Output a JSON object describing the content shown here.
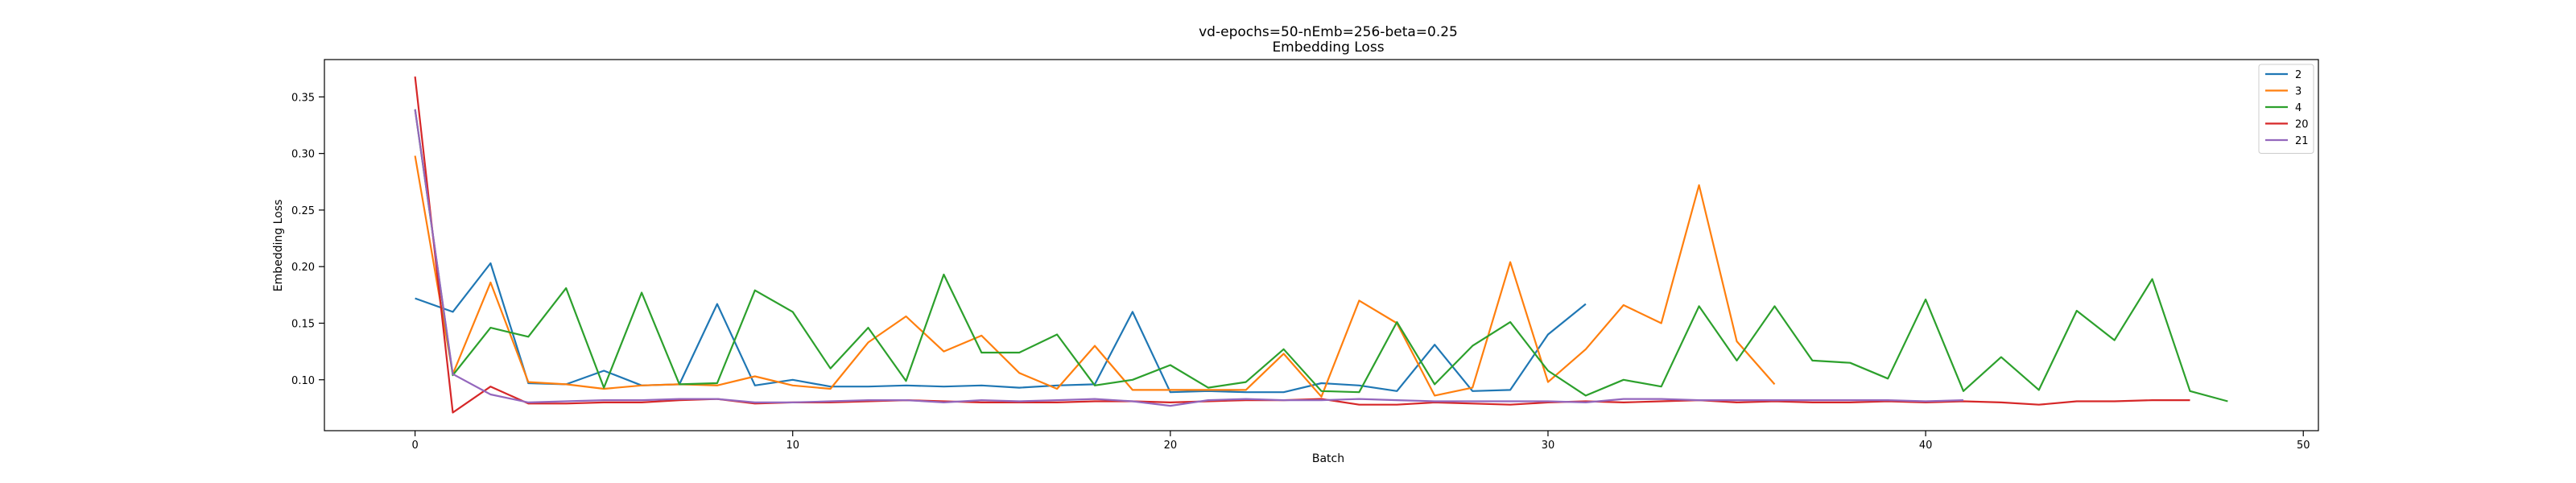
{
  "chart_data": {
    "type": "line",
    "title": "vd-epochs=50-nEmb=256-beta=0.25",
    "subtitle": "Embedding Loss",
    "xlabel": "Batch",
    "ylabel": "Embedding Loss",
    "xlim": [
      -2.4,
      50.4
    ],
    "ylim": [
      0.055,
      0.383
    ],
    "xticks": [
      0,
      10,
      20,
      30,
      40,
      50
    ],
    "yticks": [
      0.1,
      0.15,
      0.2,
      0.25,
      0.3,
      0.35
    ],
    "ytick_labels": [
      "0.10",
      "0.15",
      "0.20",
      "0.25",
      "0.30",
      "0.35"
    ],
    "grid": false,
    "legend_position": "top-right",
    "series": [
      {
        "name": "2",
        "color": "#1f77b4",
        "x": [
          0,
          1,
          2,
          3,
          4,
          5,
          6,
          7,
          8,
          9,
          10,
          11,
          12,
          13,
          14,
          15,
          16,
          17,
          18,
          19,
          20,
          21,
          22,
          23,
          24,
          25,
          26,
          27,
          28,
          29,
          30,
          31
        ],
        "values": [
          0.172,
          0.16,
          0.203,
          0.097,
          0.096,
          0.108,
          0.095,
          0.096,
          0.167,
          0.095,
          0.1,
          0.094,
          0.094,
          0.095,
          0.094,
          0.095,
          0.093,
          0.095,
          0.096,
          0.16,
          0.089,
          0.09,
          0.089,
          0.089,
          0.097,
          0.095,
          0.09,
          0.131,
          0.09,
          0.091,
          0.14,
          0.167
        ]
      },
      {
        "name": "3",
        "color": "#ff7f0e",
        "x": [
          0,
          1,
          2,
          3,
          4,
          5,
          6,
          7,
          8,
          9,
          10,
          11,
          12,
          13,
          14,
          15,
          16,
          17,
          18,
          19,
          20,
          21,
          22,
          23,
          24,
          25,
          26,
          27,
          28,
          29,
          30,
          31,
          32,
          33,
          34,
          35,
          36
        ],
        "values": [
          0.298,
          0.105,
          0.186,
          0.098,
          0.096,
          0.092,
          0.095,
          0.096,
          0.095,
          0.103,
          0.095,
          0.092,
          0.133,
          0.156,
          0.125,
          0.139,
          0.106,
          0.092,
          0.13,
          0.091,
          0.091,
          0.091,
          0.091,
          0.123,
          0.085,
          0.17,
          0.15,
          0.086,
          0.093,
          0.204,
          0.098,
          0.127,
          0.166,
          0.15,
          0.272,
          0.134,
          0.096
        ]
      },
      {
        "name": "4",
        "color": "#2ca02c",
        "x": [
          0,
          1,
          2,
          3,
          4,
          5,
          6,
          7,
          8,
          9,
          10,
          11,
          12,
          13,
          14,
          15,
          16,
          17,
          18,
          19,
          20,
          21,
          22,
          23,
          24,
          25,
          26,
          27,
          28,
          29,
          30,
          31,
          32,
          33,
          34,
          35,
          36,
          37,
          38,
          39,
          40,
          41,
          42,
          43,
          44,
          45,
          46,
          47,
          48
        ],
        "values": [
          0.339,
          0.104,
          0.146,
          0.138,
          0.181,
          0.093,
          0.177,
          0.096,
          0.097,
          0.179,
          0.16,
          0.11,
          0.146,
          0.099,
          0.193,
          0.124,
          0.124,
          0.14,
          0.095,
          0.1,
          0.113,
          0.093,
          0.098,
          0.127,
          0.09,
          0.089,
          0.151,
          0.096,
          0.13,
          0.151,
          0.108,
          0.086,
          0.1,
          0.094,
          0.165,
          0.117,
          0.165,
          0.117,
          0.115,
          0.101,
          0.171,
          0.09,
          0.12,
          0.091,
          0.161,
          0.135,
          0.189,
          0.09,
          0.081
        ]
      },
      {
        "name": "20",
        "color": "#d62728",
        "x": [
          0,
          1,
          2,
          3,
          4,
          5,
          6,
          7,
          8,
          9,
          10,
          11,
          12,
          13,
          14,
          15,
          16,
          17,
          18,
          19,
          20,
          21,
          22,
          23,
          24,
          25,
          26,
          27,
          28,
          29,
          30,
          31,
          32,
          33,
          34,
          35,
          36,
          37,
          38,
          39,
          40,
          41,
          42,
          43,
          44,
          45,
          46,
          47
        ],
        "values": [
          0.368,
          0.071,
          0.094,
          0.079,
          0.079,
          0.08,
          0.08,
          0.082,
          0.083,
          0.079,
          0.08,
          0.08,
          0.081,
          0.082,
          0.081,
          0.08,
          0.08,
          0.08,
          0.081,
          0.081,
          0.08,
          0.081,
          0.082,
          0.082,
          0.083,
          0.078,
          0.078,
          0.08,
          0.079,
          0.078,
          0.08,
          0.081,
          0.08,
          0.081,
          0.082,
          0.08,
          0.081,
          0.08,
          0.08,
          0.081,
          0.08,
          0.081,
          0.08,
          0.078,
          0.081,
          0.081,
          0.082,
          0.082
        ]
      },
      {
        "name": "21",
        "color": "#9467bd",
        "x": [
          0,
          1,
          2,
          3,
          4,
          5,
          6,
          7,
          8,
          9,
          10,
          11,
          12,
          13,
          14,
          15,
          16,
          17,
          18,
          19,
          20,
          21,
          22,
          23,
          24,
          25,
          26,
          27,
          28,
          29,
          30,
          31,
          32,
          33,
          34,
          35,
          36,
          37,
          38,
          39,
          40,
          41
        ],
        "values": [
          0.339,
          0.105,
          0.087,
          0.08,
          0.081,
          0.082,
          0.082,
          0.083,
          0.083,
          0.08,
          0.08,
          0.081,
          0.082,
          0.082,
          0.08,
          0.082,
          0.081,
          0.082,
          0.083,
          0.081,
          0.077,
          0.082,
          0.083,
          0.082,
          0.082,
          0.083,
          0.082,
          0.081,
          0.081,
          0.081,
          0.081,
          0.08,
          0.083,
          0.083,
          0.082,
          0.082,
          0.082,
          0.082,
          0.082,
          0.082,
          0.081,
          0.082
        ]
      }
    ]
  }
}
